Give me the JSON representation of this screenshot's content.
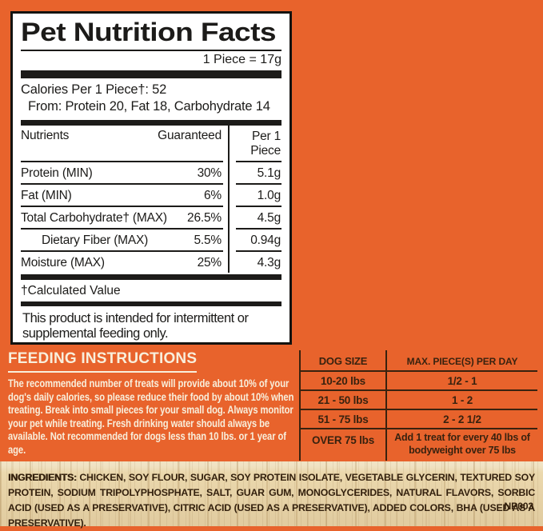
{
  "colors": {
    "orange": "#E8632C",
    "ink": "#1C1B19",
    "cream": "#F8EFDC",
    "darkbrown": "#38220F",
    "wood": "#EBD8AD"
  },
  "label": {
    "title": "Pet Nutrition Facts",
    "serving_size": "1 Piece = 17g",
    "calories": "Calories Per 1 Piece†: 52",
    "calories_from": "From: Protein 20, Fat 18, Carbohydrate 14",
    "table_headers": {
      "nutrients": "Nutrients",
      "guaranteed": "Guaranteed",
      "per_piece": "Per 1 Piece"
    },
    "rows": [
      {
        "name": "Protein (MIN)",
        "guaranteed": "30%",
        "per_piece": "5.1g"
      },
      {
        "name": "Fat (MIN)",
        "guaranteed": "6%",
        "per_piece": "1.0g"
      },
      {
        "name": "Total Carbohydrate† (MAX)",
        "guaranteed": "26.5%",
        "per_piece": "4.5g"
      },
      {
        "name": "Dietary Fiber (MAX)",
        "guaranteed": "5.5%",
        "per_piece": "0.94g"
      },
      {
        "name": "Moisture (MAX)",
        "guaranteed": "25%",
        "per_piece": "4.3g"
      }
    ],
    "footnote": "†Calculated Value",
    "intermittent_statement": "This product is intended for intermittent or supplemental feeding only."
  },
  "feeding_instructions": {
    "heading": "FEEDING INSTRUCTIONS",
    "body": "The recommended number of treats will provide about 10% of your dog's daily calories, so please reduce their food by about 10% when treating. Break into small pieces for your small dog. Always monitor your pet while treating. Fresh drinking water should always be available. Not recommended for dogs less than 10 lbs. or 1 year of age."
  },
  "dog_size_table": {
    "headers": [
      "DOG SIZE",
      "MAX. PIECE(S) PER DAY"
    ],
    "rows": [
      {
        "size": "10-20 lbs",
        "pieces": "1/2 - 1"
      },
      {
        "size": "21 - 50 lbs",
        "pieces": "1 - 2"
      },
      {
        "size": "51 - 75 lbs",
        "pieces": "2 - 2 1/2"
      },
      {
        "size": "OVER 75 lbs",
        "pieces": "Add 1 treat for every 40 lbs of bodyweight over 75 lbs"
      }
    ]
  },
  "ingredients": {
    "label": "INGREDIENTS:",
    "list": " CHICKEN, SOY FLOUR, SUGAR, SOY PROTEIN ISOLATE, VEGETABLE GLYCERIN, TEXTURED SOY PROTEIN, SODIUM TRIPOLYPHOSPHATE, SALT, GUAR GUM, MONOGLYCERIDES, NATURAL FLAVORS, SORBIC ACID (USED AS A PRESERVATIVE), CITRIC ACID (USED AS A PRESERVATIVE), ADDED COLORS, BHA (USED AS A PRESERVATIVE).",
    "product_code": "NP003"
  }
}
